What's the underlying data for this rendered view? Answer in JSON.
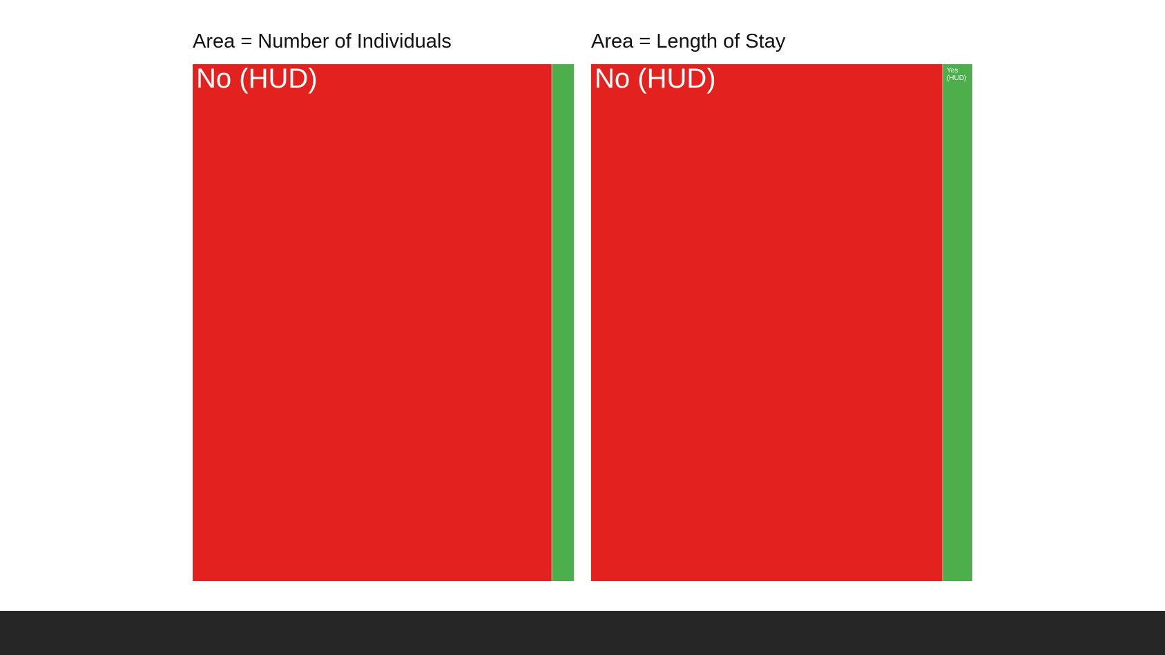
{
  "colors": {
    "no": "#e3221f",
    "yes": "#4caf4c",
    "footer": "#262626"
  },
  "chart_data": [
    {
      "type": "treemap",
      "title": "Area = Number of Individuals",
      "categories": [
        "No (HUD)",
        "Yes (HUD)"
      ],
      "values": [
        94.2,
        5.8
      ],
      "labels_shown": [
        "No (HUD)",
        ""
      ]
    },
    {
      "type": "treemap",
      "title": "Area = Length of Stay",
      "categories": [
        "No (HUD)",
        "Yes (HUD)"
      ],
      "values": [
        92.2,
        7.8
      ],
      "labels_shown": [
        "No (HUD)",
        "Yes (HUD)"
      ]
    }
  ]
}
